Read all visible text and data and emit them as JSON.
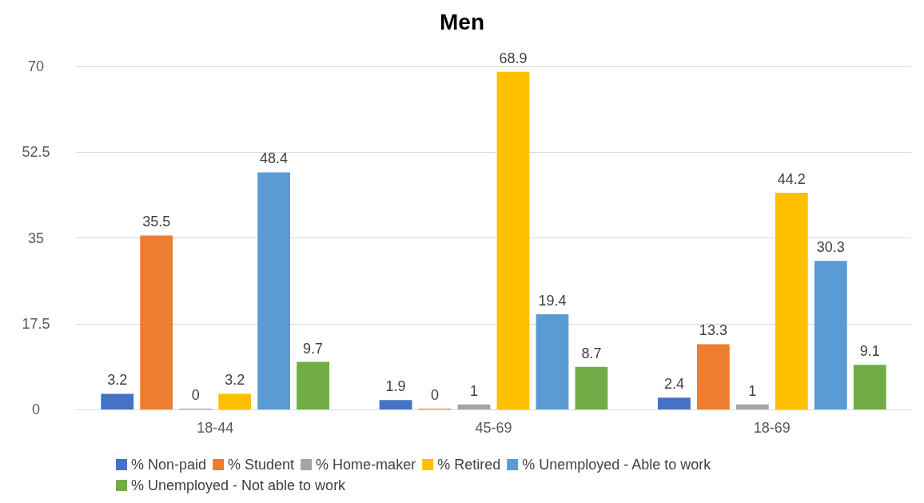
{
  "chart_data": {
    "type": "bar",
    "title": "Men",
    "categories": [
      "18-44",
      "45-69",
      "18-69"
    ],
    "series": [
      {
        "name": "% Non-paid",
        "color": "#4472c4",
        "values": [
          3.2,
          1.9,
          2.4
        ]
      },
      {
        "name": "% Student",
        "color": "#ed7d31",
        "values": [
          35.5,
          0,
          13.3
        ]
      },
      {
        "name": "% Home-maker",
        "color": "#a5a5a5",
        "values": [
          0,
          1,
          1
        ]
      },
      {
        "name": "% Retired",
        "color": "#ffc000",
        "values": [
          3.2,
          68.9,
          44.2
        ]
      },
      {
        "name": "% Unemployed - Able to work",
        "color": "#5b9bd5",
        "values": [
          48.4,
          19.4,
          30.3
        ]
      },
      {
        "name": "% Unemployed - Not able to work",
        "color": "#70ad47",
        "values": [
          9.7,
          8.7,
          9.1
        ]
      }
    ],
    "ylim": [
      0,
      70
    ],
    "yticks": [
      0,
      17.5,
      35,
      52.5,
      70
    ],
    "grid": "y",
    "legend": "bottom",
    "data_labels": true
  }
}
